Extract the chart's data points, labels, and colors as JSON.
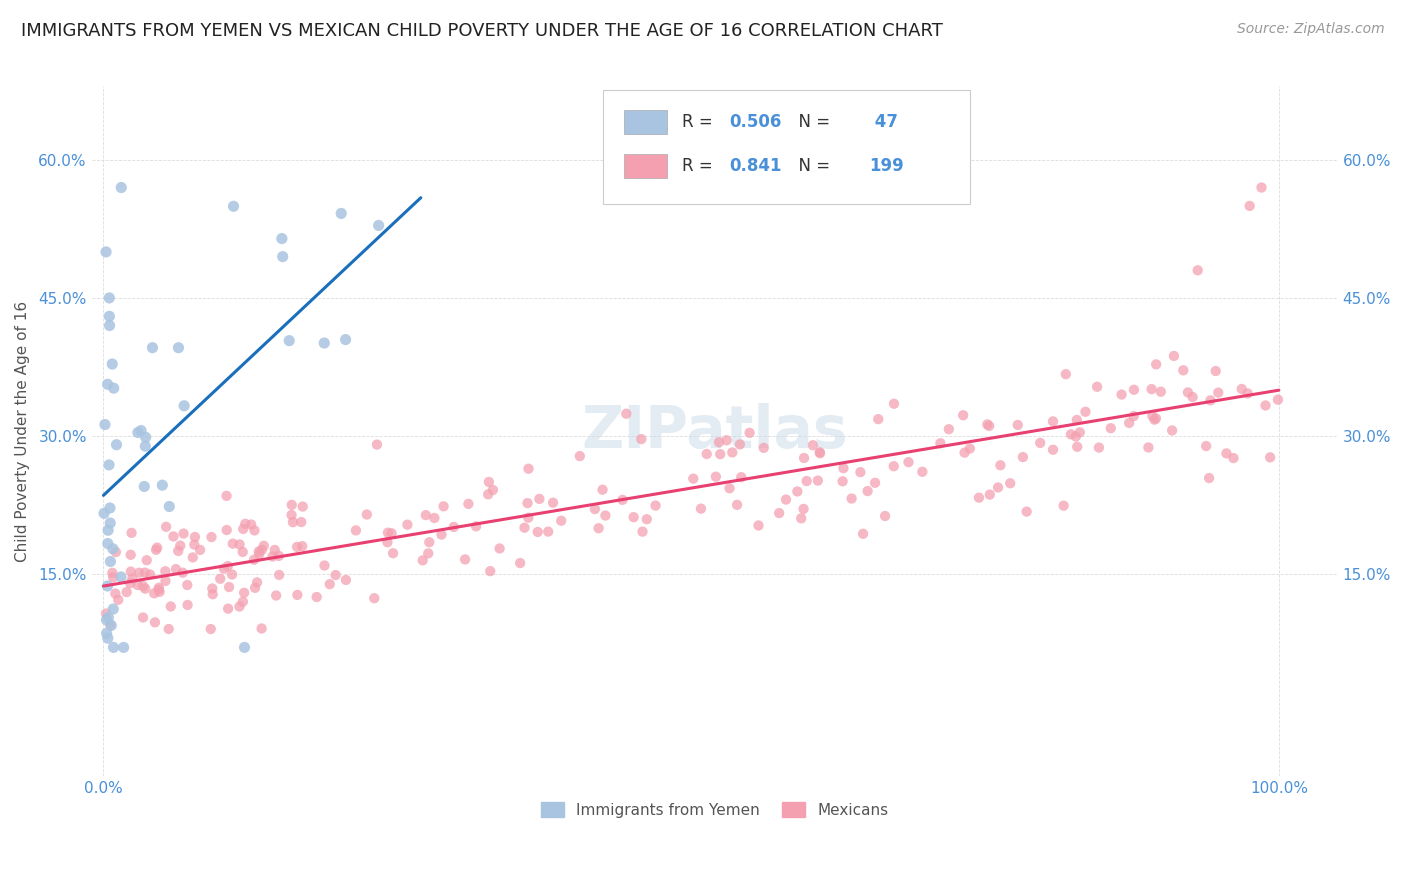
{
  "title": "IMMIGRANTS FROM YEMEN VS MEXICAN CHILD POVERTY UNDER THE AGE OF 16 CORRELATION CHART",
  "source": "Source: ZipAtlas.com",
  "ylabel": "Child Poverty Under the Age of 16",
  "R_yemen": 0.506,
  "N_yemen": 47,
  "R_mexicans": 0.841,
  "N_mexicans": 199,
  "color_yemen": "#a8c4e0",
  "color_mexicans": "#f4a0b0",
  "line_color_yemen": "#1a6fbd",
  "line_color_mexicans": "#e84070",
  "legend_labels": [
    "Immigrants from Yemen",
    "Mexicans"
  ],
  "title_color": "#222222",
  "axis_label_color": "#4a90d9",
  "background_color": "#ffffff",
  "grid_color": "#dddddd",
  "title_fontsize": 13,
  "source_fontsize": 10,
  "tick_fontsize": 11,
  "watermark_fontsize": 42,
  "watermark_color": "#c8d8e8",
  "watermark_alpha": 0.5,
  "xlim": [
    -0.01,
    1.05
  ],
  "ylim": [
    -0.07,
    0.68
  ],
  "yticks": [
    0.15,
    0.3,
    0.45,
    0.6
  ],
  "ytick_labels": [
    "15.0%",
    "30.0%",
    "45.0%",
    "60.0%"
  ],
  "xtick_labels": [
    "0.0%",
    "100.0%"
  ],
  "xticks": [
    0.0,
    1.0
  ]
}
